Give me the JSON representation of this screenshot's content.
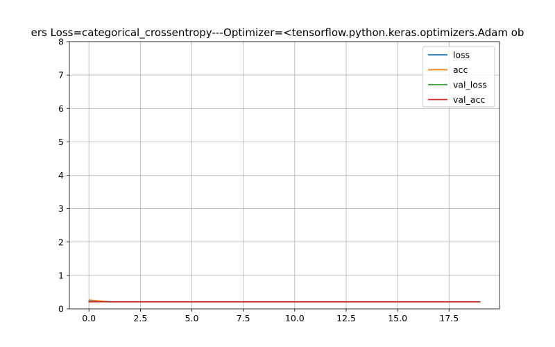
{
  "chart_data": {
    "type": "line",
    "title": "ers  Loss=categorical_crossentropy---Optimizer=<tensorflow.python.keras.optimizers.Adam ob",
    "xlabel": "",
    "ylabel": "",
    "xlim": [
      -0.95,
      19.95
    ],
    "ylim": [
      0,
      8
    ],
    "xticks": [
      0.0,
      2.5,
      5.0,
      7.5,
      10.0,
      12.5,
      15.0,
      17.5
    ],
    "xtick_labels": [
      "0.0",
      "2.5",
      "5.0",
      "7.5",
      "10.0",
      "12.5",
      "15.0",
      "17.5"
    ],
    "yticks": [
      0,
      1,
      2,
      3,
      4,
      5,
      6,
      7,
      8
    ],
    "ytick_labels": [
      "0",
      "1",
      "2",
      "3",
      "4",
      "5",
      "6",
      "7",
      "8"
    ],
    "grid": true,
    "legend_position": "top-right",
    "x": [
      0,
      1,
      2,
      3,
      4,
      5,
      6,
      7,
      8,
      9,
      10,
      11,
      12,
      13,
      14,
      15,
      16,
      17,
      18,
      19
    ],
    "series": [
      {
        "name": "loss",
        "color": "#1f77b4",
        "values": [
          0.23,
          0.21,
          0.21,
          0.21,
          0.21,
          0.21,
          0.21,
          0.21,
          0.21,
          0.21,
          0.21,
          0.21,
          0.21,
          0.21,
          0.21,
          0.21,
          0.21,
          0.21,
          0.21,
          0.21
        ]
      },
      {
        "name": "acc",
        "color": "#ff7f0e",
        "values": [
          0.27,
          0.21,
          0.21,
          0.21,
          0.21,
          0.21,
          0.21,
          0.21,
          0.21,
          0.21,
          0.21,
          0.21,
          0.21,
          0.21,
          0.21,
          0.21,
          0.21,
          0.21,
          0.21,
          0.21
        ]
      },
      {
        "name": "val_loss",
        "color": "#2ca02c",
        "values": [
          0.21,
          0.21,
          0.21,
          0.21,
          0.21,
          0.21,
          0.21,
          0.21,
          0.21,
          0.21,
          0.21,
          0.21,
          0.21,
          0.21,
          0.21,
          0.21,
          0.21,
          0.21,
          0.21,
          0.21
        ]
      },
      {
        "name": "val_acc",
        "color": "#d62728",
        "values": [
          0.21,
          0.21,
          0.21,
          0.21,
          0.21,
          0.21,
          0.21,
          0.21,
          0.21,
          0.21,
          0.21,
          0.21,
          0.21,
          0.21,
          0.21,
          0.21,
          0.21,
          0.21,
          0.21,
          0.21
        ]
      }
    ]
  }
}
